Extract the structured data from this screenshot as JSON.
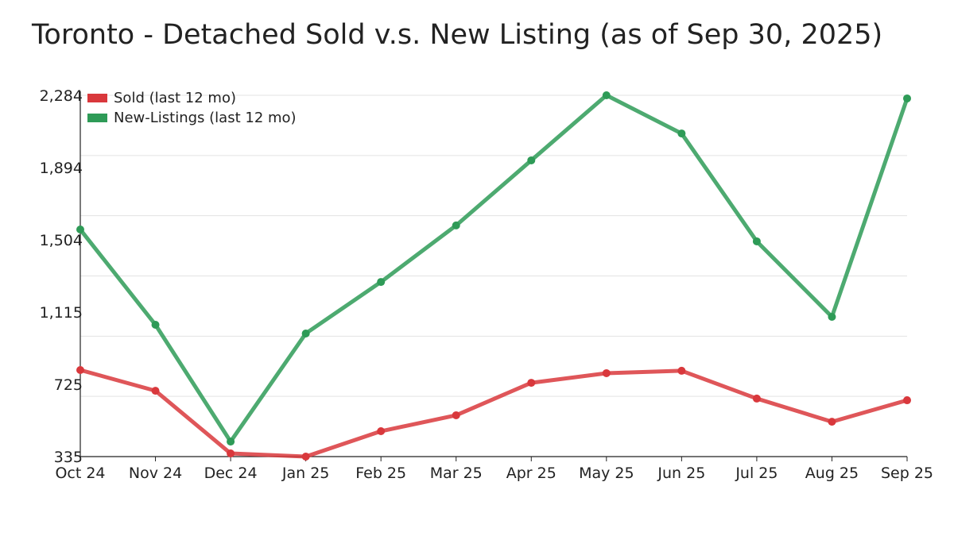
{
  "chart_data": {
    "type": "line",
    "title": "Toronto - Detached Sold v.s. New Listing (as of Sep 30, 2025)",
    "xlabel": "",
    "ylabel": "",
    "categories": [
      "Oct 24",
      "Nov 24",
      "Dec 24",
      "Jan 25",
      "Feb 25",
      "Mar 25",
      "Apr 25",
      "May 25",
      "Jun 25",
      "Jul 25",
      "Aug 25",
      "Sep 25"
    ],
    "ylim": [
      335,
      2284
    ],
    "yticks": [
      335,
      725,
      1115,
      1504,
      1894,
      2284
    ],
    "ytick_labels": [
      "335",
      "725",
      "1,115",
      "1,504",
      "1,894",
      "2,284"
    ],
    "grid": true,
    "legend_position": "top-left",
    "series": [
      {
        "name": "Sold (last 12 mo)",
        "color": "#d9383c",
        "values": [
          802,
          690,
          352,
          335,
          472,
          558,
          733,
          785,
          798,
          648,
          523,
          639
        ]
      },
      {
        "name": "New-Listings (last 12 mo)",
        "color": "#2e9b57",
        "values": [
          1560,
          1046,
          416,
          999,
          1277,
          1582,
          1933,
          2284,
          2078,
          1496,
          1089,
          2267
        ]
      }
    ]
  }
}
